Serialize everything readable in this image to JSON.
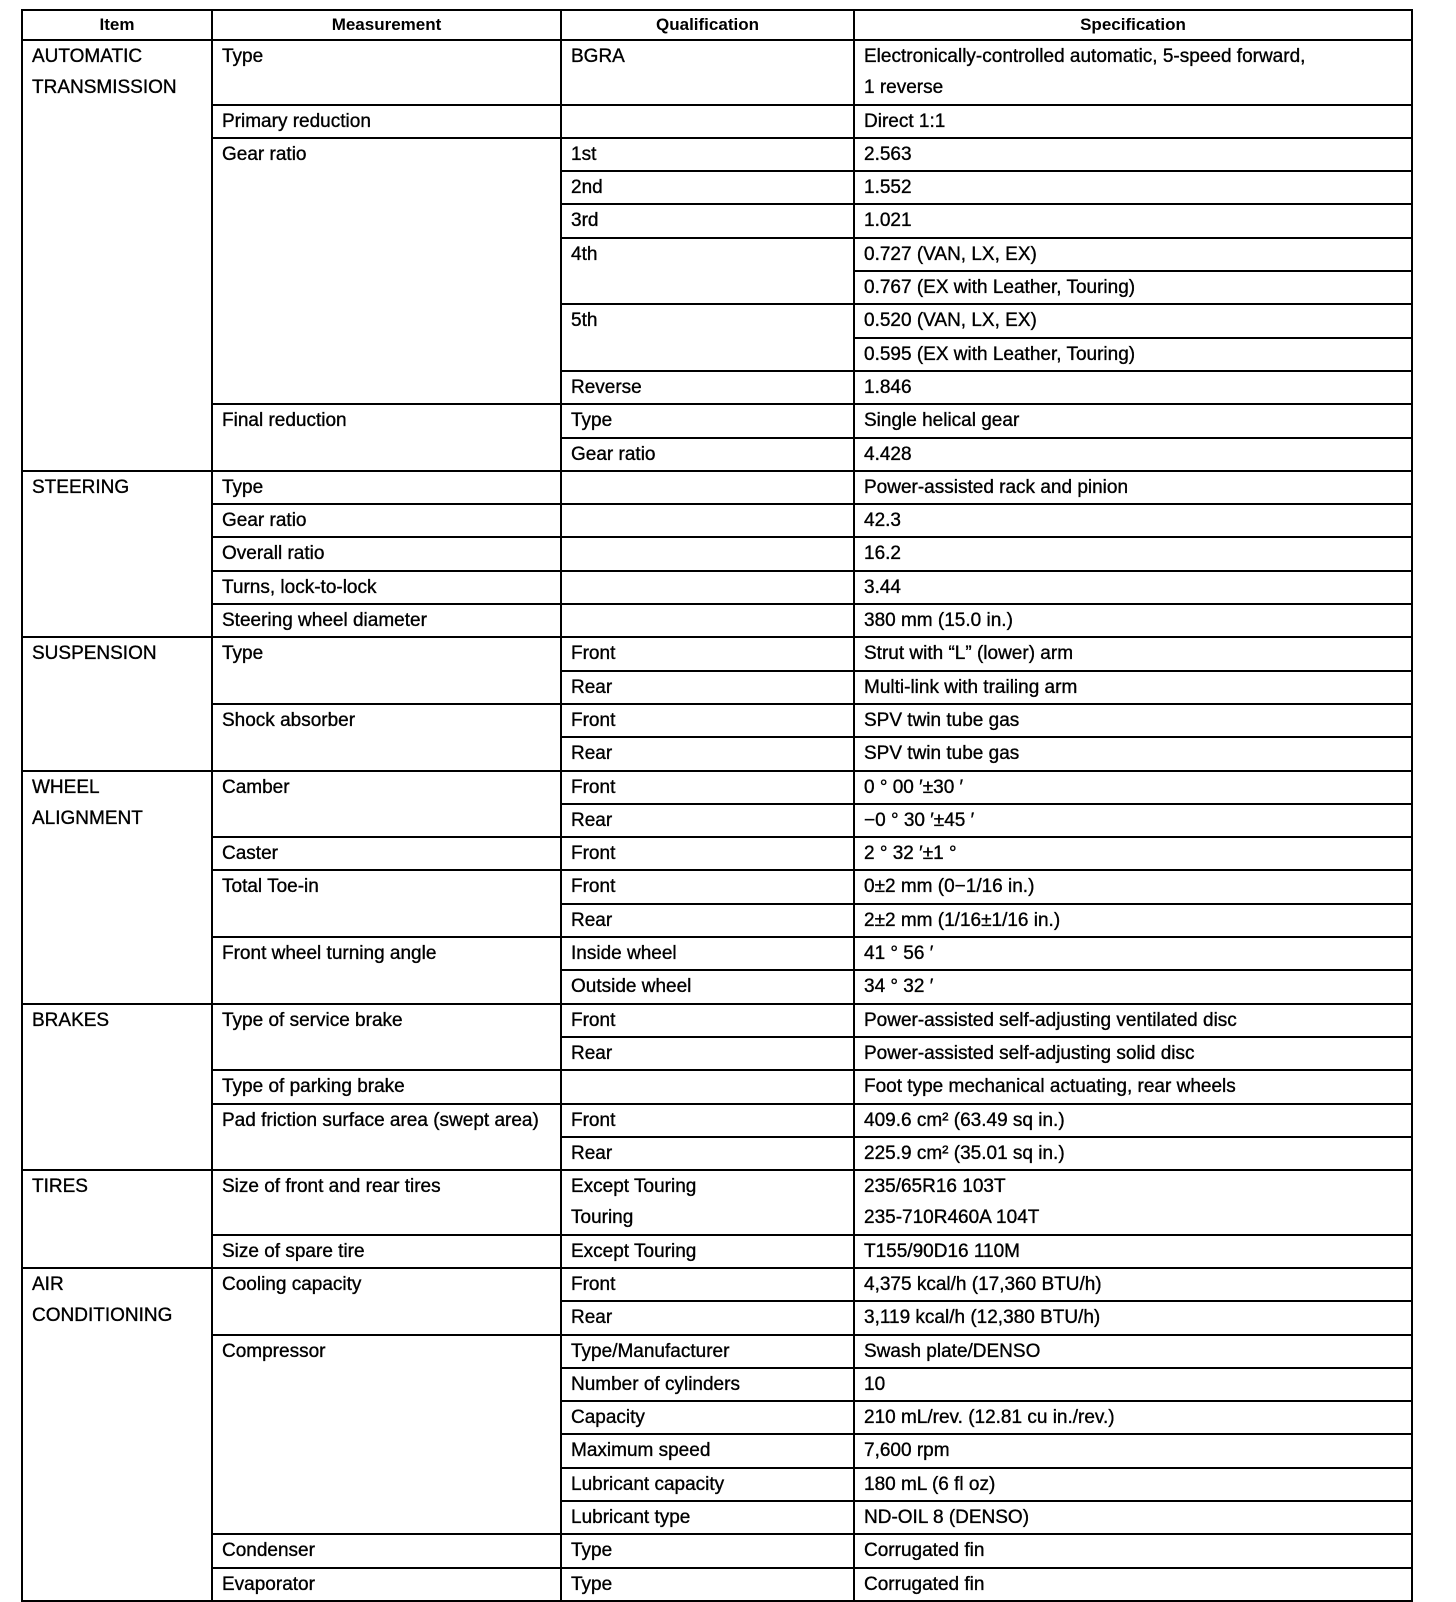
{
  "headers": [
    "Item",
    "Measurement",
    "Qualification",
    "Specification"
  ],
  "sections": [
    {
      "item": "AUTOMATIC\nTRANSMISSION",
      "rows": [
        {
          "measurement": "Type",
          "quals": [
            {
              "label": "BGRA",
              "specs": [
                "Electronically-controlled automatic, 5-speed forward,\n1 reverse"
              ]
            }
          ]
        },
        {
          "measurement": "Primary reduction",
          "quals": [
            {
              "label": "",
              "specs": [
                "Direct 1:1"
              ]
            }
          ]
        },
        {
          "measurement": "Gear ratio",
          "quals": [
            {
              "label": "1st",
              "specs": [
                "2.563"
              ]
            },
            {
              "label": "2nd",
              "specs": [
                "1.552"
              ]
            },
            {
              "label": "3rd",
              "specs": [
                "1.021"
              ]
            },
            {
              "label": "4th",
              "specs": [
                "0.727 (VAN, LX, EX)",
                "0.767 (EX with Leather, Touring)"
              ]
            },
            {
              "label": "5th",
              "specs": [
                "0.520 (VAN, LX, EX)",
                "0.595 (EX with Leather, Touring)"
              ]
            },
            {
              "label": "Reverse",
              "specs": [
                "1.846"
              ]
            }
          ]
        },
        {
          "measurement": "Final reduction",
          "quals": [
            {
              "label": "Type",
              "specs": [
                "Single helical gear"
              ]
            },
            {
              "label": "Gear ratio",
              "specs": [
                "4.428"
              ]
            }
          ]
        }
      ]
    },
    {
      "item": "STEERING",
      "rows": [
        {
          "measurement": "Type",
          "quals": [
            {
              "label": "",
              "specs": [
                "Power-assisted rack and pinion"
              ]
            }
          ]
        },
        {
          "measurement": "Gear ratio",
          "quals": [
            {
              "label": "",
              "specs": [
                "42.3"
              ]
            }
          ]
        },
        {
          "measurement": "Overall ratio",
          "quals": [
            {
              "label": "",
              "specs": [
                "16.2"
              ]
            }
          ]
        },
        {
          "measurement": "Turns, lock-to-lock",
          "quals": [
            {
              "label": "",
              "specs": [
                "3.44"
              ]
            }
          ]
        },
        {
          "measurement": "Steering wheel diameter",
          "quals": [
            {
              "label": "",
              "specs": [
                "380 mm (15.0 in.)"
              ]
            }
          ]
        }
      ]
    },
    {
      "item": "SUSPENSION",
      "rows": [
        {
          "measurement": "Type",
          "quals": [
            {
              "label": "Front",
              "specs": [
                "Strut with “L” (lower) arm"
              ]
            },
            {
              "label": "Rear",
              "specs": [
                "Multi-link with trailing arm"
              ]
            }
          ]
        },
        {
          "measurement": "Shock absorber",
          "quals": [
            {
              "label": "Front",
              "specs": [
                "SPV twin tube gas"
              ]
            },
            {
              "label": "Rear",
              "specs": [
                "SPV twin tube gas"
              ]
            }
          ]
        }
      ]
    },
    {
      "item": "WHEEL\nALIGNMENT",
      "rows": [
        {
          "measurement": "Camber",
          "quals": [
            {
              "label": "Front",
              "specs": [
                "0 ° 00 ′±30 ′"
              ]
            },
            {
              "label": "Rear",
              "specs": [
                "−0 ° 30 ′±45 ′"
              ]
            }
          ]
        },
        {
          "measurement": "Caster",
          "quals": [
            {
              "label": "Front",
              "specs": [
                "2 ° 32 ′±1 °"
              ]
            }
          ]
        },
        {
          "measurement": "Total Toe-in",
          "quals": [
            {
              "label": "Front",
              "specs": [
                "0±2 mm (0−1/16 in.)"
              ]
            },
            {
              "label": "Rear",
              "specs": [
                "2±2 mm (1/16±1/16 in.)"
              ]
            }
          ]
        },
        {
          "measurement": "Front wheel turning angle",
          "quals": [
            {
              "label": "Inside wheel",
              "specs": [
                "41 ° 56 ′"
              ]
            },
            {
              "label": "Outside wheel",
              "specs": [
                "34 ° 32 ′"
              ]
            }
          ]
        }
      ]
    },
    {
      "item": "BRAKES",
      "rows": [
        {
          "measurement": "Type of service brake",
          "quals": [
            {
              "label": "Front",
              "specs": [
                "Power-assisted self-adjusting ventilated disc"
              ]
            },
            {
              "label": "Rear",
              "specs": [
                "Power-assisted self-adjusting solid disc"
              ]
            }
          ]
        },
        {
          "measurement": "Type of parking brake",
          "quals": [
            {
              "label": "",
              "specs": [
                "Foot type mechanical actuating, rear wheels"
              ]
            }
          ]
        },
        {
          "measurement": "Pad friction surface area (swept area)",
          "quals": [
            {
              "label": "Front",
              "specs": [
                "409.6 cm² (63.49 sq in.)"
              ]
            },
            {
              "label": "Rear",
              "specs": [
                "225.9 cm² (35.01 sq in.)"
              ]
            }
          ]
        }
      ]
    },
    {
      "item": "TIRES",
      "rows": [
        {
          "measurement": "Size of front and rear tires",
          "quals": [
            {
              "label": "Except Touring\nTouring",
              "specs": [
                "235/65R16 103T\n235-710R460A 104T"
              ]
            }
          ]
        },
        {
          "measurement": "Size of spare tire",
          "quals": [
            {
              "label": "Except Touring",
              "specs": [
                "T155/90D16 110M"
              ]
            }
          ]
        }
      ]
    },
    {
      "item": "AIR\nCONDITIONING",
      "rows": [
        {
          "measurement": "Cooling capacity",
          "quals": [
            {
              "label": "Front",
              "specs": [
                "4,375 kcal/h (17,360 BTU/h)"
              ]
            },
            {
              "label": "Rear",
              "specs": [
                "3,119 kcal/h (12,380 BTU/h)"
              ]
            }
          ]
        },
        {
          "measurement": "Compressor",
          "quals": [
            {
              "label": "Type/Manufacturer",
              "specs": [
                "Swash plate/DENSO"
              ]
            },
            {
              "label": "Number of cylinders",
              "specs": [
                "10"
              ]
            },
            {
              "label": "Capacity",
              "specs": [
                "210 mL/rev. (12.81 cu in./rev.)"
              ]
            },
            {
              "label": "Maximum speed",
              "specs": [
                "7,600 rpm"
              ]
            },
            {
              "label": "Lubricant capacity",
              "specs": [
                "180 mL (6 fl oz)"
              ]
            },
            {
              "label": "Lubricant type",
              "specs": [
                "ND-OIL 8 (DENSO)"
              ]
            }
          ]
        },
        {
          "measurement": "Condenser",
          "quals": [
            {
              "label": "Type",
              "specs": [
                "Corrugated fin"
              ]
            }
          ]
        },
        {
          "measurement": "Evaporator",
          "quals": [
            {
              "label": "Type",
              "specs": [
                "Corrugated fin"
              ]
            }
          ]
        }
      ]
    }
  ]
}
